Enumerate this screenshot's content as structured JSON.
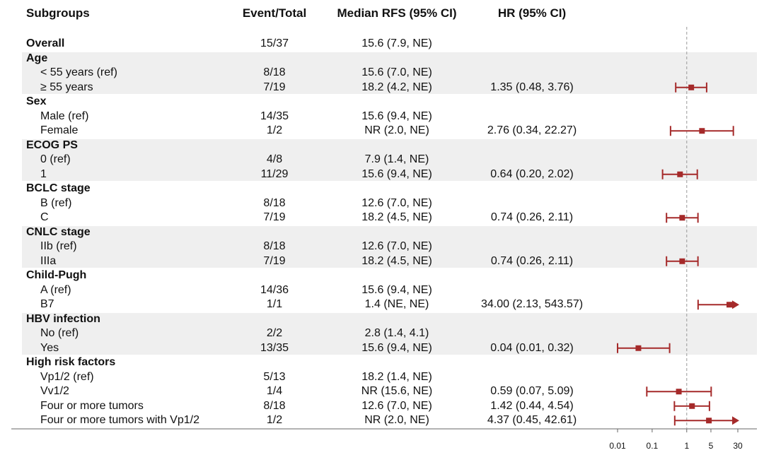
{
  "headers": {
    "subgroups": "Subgroups",
    "event_total": "Event/Total",
    "median": "Median RFS (95% CI)",
    "hr": "HR (95% CI)"
  },
  "colors": {
    "marker": "#a52a2a",
    "band": "#efefef",
    "refline": "#999999"
  },
  "chart_data": {
    "type": "forest",
    "title": "",
    "xlabel": "",
    "ylabel": "",
    "x_scale": "log",
    "xlim": [
      0.01,
      30
    ],
    "x_ticks": [
      "0.01",
      "0.1",
      "1",
      "5",
      "30"
    ],
    "x_tick_values": [
      0.01,
      0.1,
      1,
      5,
      30
    ],
    "reference_line": 1,
    "rows": [
      {
        "label": "Overall",
        "kind": "group",
        "event_total": "15/37",
        "median": "15.6 (7.9, NE)",
        "hr_text": "",
        "band": false
      },
      {
        "label": "Age",
        "kind": "group",
        "event_total": "",
        "median": "",
        "hr_text": "",
        "band": true
      },
      {
        "label": "< 55 years (ref)",
        "kind": "item",
        "event_total": "8/18",
        "median": "15.6 (7.0, NE)",
        "hr_text": "",
        "band": true
      },
      {
        "label": "≥ 55 years",
        "kind": "item",
        "event_total": "7/19",
        "median": "18.2 (4.2, NE)",
        "hr_text": "1.35 (0.48, 3.76)",
        "hr": 1.35,
        "lo": 0.48,
        "hi": 3.76,
        "band": true
      },
      {
        "label": "Sex",
        "kind": "group",
        "event_total": "",
        "median": "",
        "hr_text": "",
        "band": false
      },
      {
        "label": "Male (ref)",
        "kind": "item",
        "event_total": "14/35",
        "median": "15.6 (9.4, NE)",
        "hr_text": "",
        "band": false
      },
      {
        "label": "Female",
        "kind": "item",
        "event_total": "1/2",
        "median": "NR (2.0, NE)",
        "hr_text": "2.76 (0.34, 22.27)",
        "hr": 2.76,
        "lo": 0.34,
        "hi": 22.27,
        "band": false
      },
      {
        "label": "ECOG PS",
        "kind": "group",
        "event_total": "",
        "median": "",
        "hr_text": "",
        "band": true
      },
      {
        "label": "0 (ref)",
        "kind": "item",
        "event_total": "4/8",
        "median": "7.9 (1.4, NE)",
        "hr_text": "",
        "band": true
      },
      {
        "label": "1",
        "kind": "item",
        "event_total": "11/29",
        "median": "15.6 (9.4, NE)",
        "hr_text": "0.64 (0.20, 2.02)",
        "hr": 0.64,
        "lo": 0.2,
        "hi": 2.02,
        "band": true
      },
      {
        "label": "BCLC stage",
        "kind": "group",
        "event_total": "",
        "median": "",
        "hr_text": "",
        "band": false
      },
      {
        "label": "B (ref)",
        "kind": "item",
        "event_total": "8/18",
        "median": "12.6 (7.0, NE)",
        "hr_text": "",
        "band": false
      },
      {
        "label": "C",
        "kind": "item",
        "event_total": "7/19",
        "median": "18.2 (4.5, NE)",
        "hr_text": "0.74 (0.26, 2.11)",
        "hr": 0.74,
        "lo": 0.26,
        "hi": 2.11,
        "band": false
      },
      {
        "label": "CNLC stage",
        "kind": "group",
        "event_total": "",
        "median": "",
        "hr_text": "",
        "band": true
      },
      {
        "label": "IIb (ref)",
        "kind": "item",
        "event_total": "8/18",
        "median": "12.6 (7.0, NE)",
        "hr_text": "",
        "band": true
      },
      {
        "label": "IIIa",
        "kind": "item",
        "event_total": "7/19",
        "median": "18.2 (4.5, NE)",
        "hr_text": "0.74 (0.26, 2.11)",
        "hr": 0.74,
        "lo": 0.26,
        "hi": 2.11,
        "band": true
      },
      {
        "label": "Child-Pugh",
        "kind": "group",
        "event_total": "",
        "median": "",
        "hr_text": "",
        "band": false
      },
      {
        "label": "A (ref)",
        "kind": "item",
        "event_total": "14/36",
        "median": "15.6 (9.4, NE)",
        "hr_text": "",
        "band": false
      },
      {
        "label": "B7",
        "kind": "item",
        "event_total": "1/1",
        "median": "1.4 (NE, NE)",
        "hr_text": "34.00 (2.13, 543.57)",
        "hr": 34.0,
        "lo": 2.13,
        "hi": 543.57,
        "band": false
      },
      {
        "label": "HBV infection",
        "kind": "group",
        "event_total": "",
        "median": "",
        "hr_text": "",
        "band": true
      },
      {
        "label": "No (ref)",
        "kind": "item",
        "event_total": "2/2",
        "median": "2.8 (1.4, 4.1)",
        "hr_text": "",
        "band": true
      },
      {
        "label": "Yes",
        "kind": "item",
        "event_total": "13/35",
        "median": "15.6 (9.4, NE)",
        "hr_text": "0.04 (0.01, 0.32)",
        "hr": 0.04,
        "lo": 0.01,
        "hi": 0.32,
        "band": true
      },
      {
        "label": "High risk factors",
        "kind": "group",
        "event_total": "",
        "median": "",
        "hr_text": "",
        "band": false
      },
      {
        "label": "Vp1/2 (ref)",
        "kind": "item",
        "event_total": "5/13",
        "median": "18.2 (1.4, NE)",
        "hr_text": "",
        "band": false
      },
      {
        "label": "Vv1/2",
        "kind": "item",
        "event_total": "1/4",
        "median": "NR (15.6, NE)",
        "hr_text": "0.59 (0.07, 5.09)",
        "hr": 0.59,
        "lo": 0.07,
        "hi": 5.09,
        "band": false
      },
      {
        "label": "Four or more tumors",
        "kind": "item",
        "event_total": "8/18",
        "median": "12.6 (7.0, NE)",
        "hr_text": "1.42 (0.44, 4.54)",
        "hr": 1.42,
        "lo": 0.44,
        "hi": 4.54,
        "band": false
      },
      {
        "label": "Four or more tumors with Vp1/2",
        "kind": "item",
        "event_total": "1/2",
        "median": "NR (2.0, NE)",
        "hr_text": "4.37 (0.45, 42.61)",
        "hr": 4.37,
        "lo": 0.45,
        "hi": 42.61,
        "band": false
      }
    ]
  }
}
